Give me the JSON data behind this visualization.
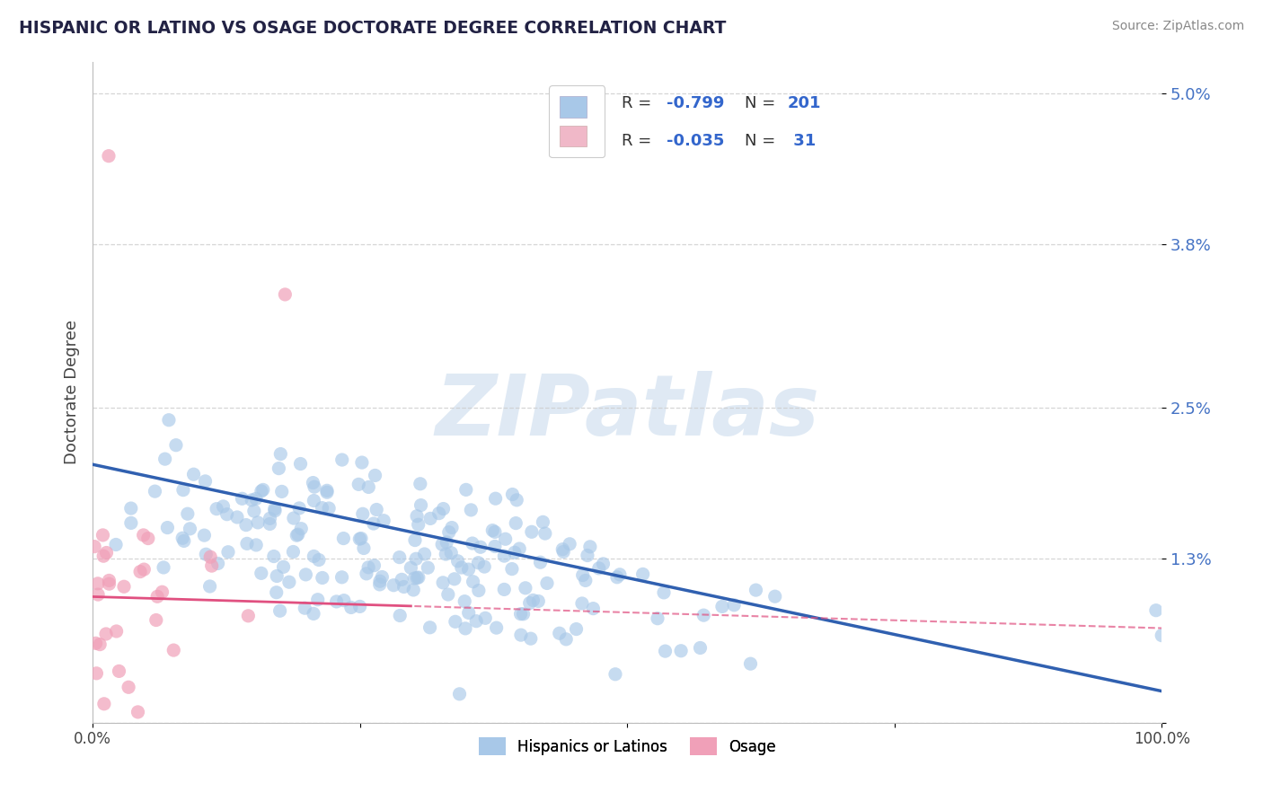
{
  "title": "HISPANIC OR LATINO VS OSAGE DOCTORATE DEGREE CORRELATION CHART",
  "source": "Source: ZipAtlas.com",
  "ylabel": "Doctorate Degree",
  "xlim": [
    0,
    100
  ],
  "ylim": [
    0,
    5.25
  ],
  "yticks": [
    0,
    1.3,
    2.5,
    3.8,
    5.0
  ],
  "ytick_labels": [
    "",
    "1.3%",
    "2.5%",
    "3.8%",
    "5.0%"
  ],
  "xticks": [
    0,
    25,
    50,
    75,
    100
  ],
  "xtick_labels": [
    "0.0%",
    "",
    "",
    "",
    "100.0%"
  ],
  "series": [
    {
      "name": "Hispanics or Latinos",
      "R": -0.799,
      "N": 201,
      "marker_color": "#a8c8e8",
      "line_color": "#3060b0"
    },
    {
      "name": "Osage",
      "R": -0.035,
      "N": 31,
      "marker_color": "#f0a0b8",
      "line_color": "#e05080"
    }
  ],
  "legend_box_color": "#a8c8e8",
  "legend_box_color2": "#f0b8c8",
  "watermark": "ZIPatlas",
  "background_color": "#ffffff",
  "grid_color": "#cccccc",
  "title_color": "#222244",
  "source_color": "#888888",
  "ylabel_color": "#444444",
  "tick_color_y": "#4472c4",
  "tick_color_x": "#444444"
}
